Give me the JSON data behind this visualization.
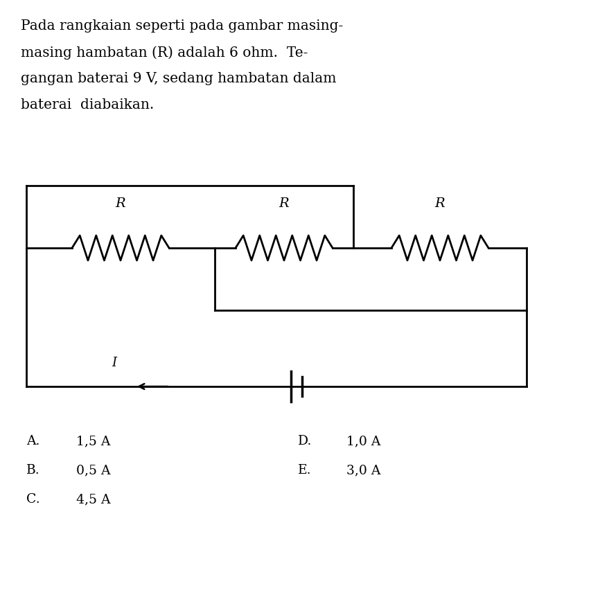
{
  "background_color": "#ffffff",
  "line_color": "#000000",
  "text_color": "#000000",
  "options": [
    {
      "label": "A.",
      "value": "1,5 A"
    },
    {
      "label": "B.",
      "value": "0,5 A"
    },
    {
      "label": "C.",
      "value": "4,5 A"
    },
    {
      "label": "D.",
      "value": "1,0 A"
    },
    {
      "label": "E.",
      "value": "3,0 A"
    }
  ],
  "resistor_label": "R",
  "current_label": "I",
  "fig_width": 8.66,
  "fig_height": 8.88,
  "font_size_title": 14.5,
  "font_size_options": 13.5
}
